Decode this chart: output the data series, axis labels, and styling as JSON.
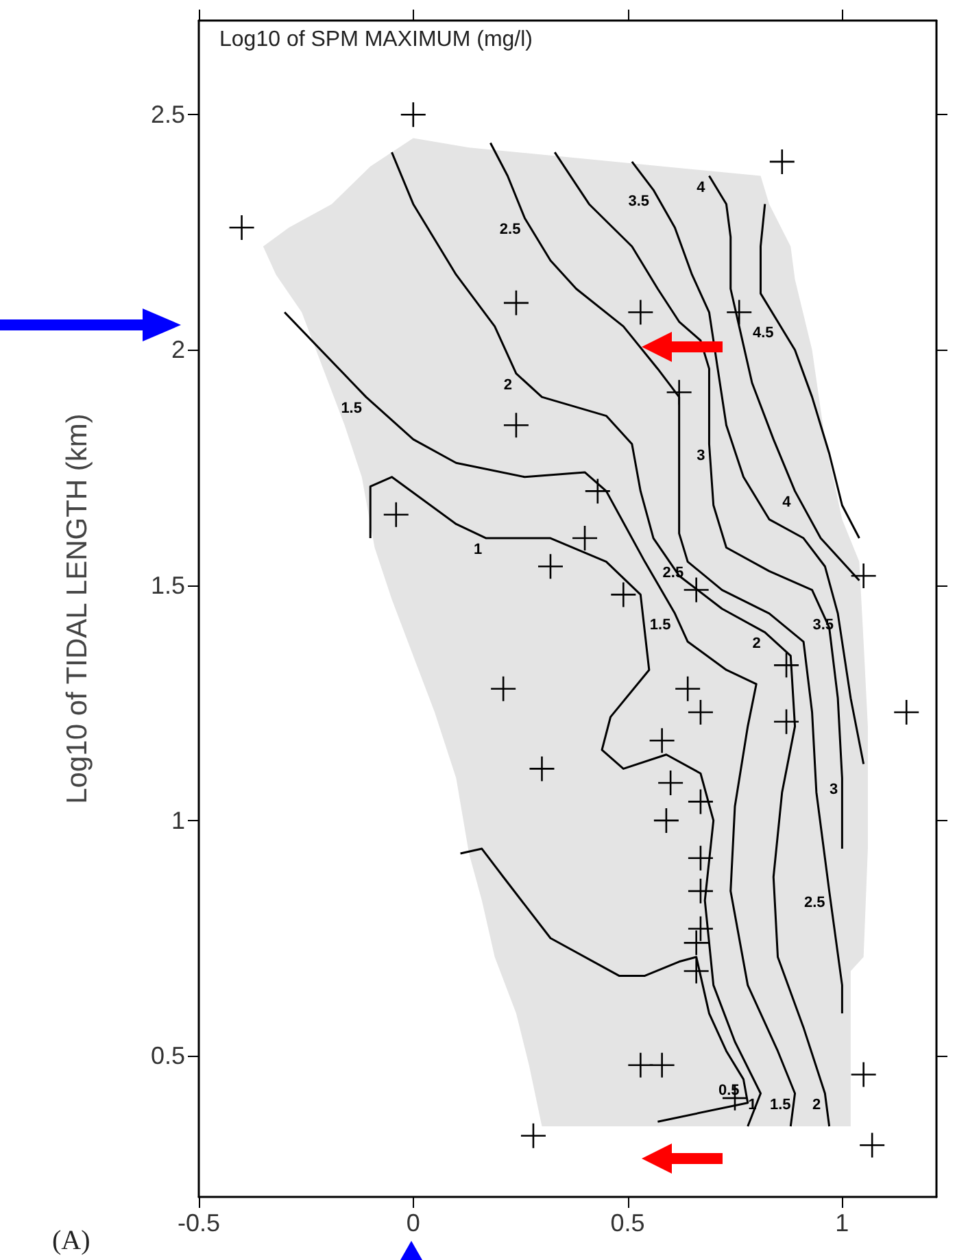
{
  "chart_data": {
    "type": "scatter",
    "title": "Log10 of SPM MAXIMUM (mg/l)",
    "ylabel": "Log10 of TIDAL LENGTH (km)",
    "xlim": [
      -0.5,
      1.22
    ],
    "ylim": [
      0.2,
      2.7
    ],
    "xticks": [
      -0.5,
      0,
      0.5,
      1
    ],
    "yticks": [
      0.5,
      1,
      1.5,
      2,
      2.5
    ],
    "grid": false,
    "series": [
      {
        "type": "area",
        "color": "#e4e4e4",
        "x": [
          0,
          0.13,
          0.81,
          0.83,
          0.88,
          0.89,
          0.93,
          0.96,
          1.0,
          1.04,
          1.05,
          1.06,
          1.06,
          1.05,
          1.02,
          1.02,
          0.3,
          0.27,
          0.24,
          0.19,
          0.16,
          0.13,
          0.1,
          0.05,
          0,
          -0.05,
          -0.09,
          -0.12,
          -0.16,
          -0.21,
          -0.26,
          -0.32,
          -0.35,
          -0.29,
          -0.19,
          -0.1
        ],
        "values": [
          2.45,
          2.43,
          2.37,
          2.31,
          2.22,
          2.15,
          2.0,
          1.81,
          1.64,
          1.55,
          1.38,
          1.2,
          0.94,
          0.71,
          0.68,
          0.35,
          0.35,
          0.48,
          0.59,
          0.71,
          0.83,
          0.93,
          1.09,
          1.23,
          1.35,
          1.47,
          1.58,
          1.73,
          1.84,
          1.96,
          2.08,
          2.16,
          2.22,
          2.26,
          2.31,
          2.39
        ]
      },
      {
        "type": "line",
        "color": "#000000",
        "marker": "none",
        "x": [
          0.11,
          0.16,
          0.21,
          0.32,
          0.48,
          0.54,
          0.62,
          0.66,
          0.69,
          0.73,
          0.77,
          0.78,
          0.57
        ],
        "values": [
          0.93,
          0.94,
          0.88,
          0.75,
          0.67,
          0.67,
          0.7,
          0.71,
          0.59,
          0.51,
          0.45,
          0.4,
          0.36
        ]
      },
      {
        "type": "line",
        "color": "#000000",
        "marker": "none",
        "x": [
          -0.1,
          -0.1,
          -0.05,
          0.1,
          0.17,
          0.32,
          0.45,
          0.53,
          0.55,
          0.46,
          0.44,
          0.49,
          0.59,
          0.67,
          0.7,
          0.68,
          0.7,
          0.75,
          0.81,
          0.78
        ],
        "values": [
          1.6,
          1.71,
          1.73,
          1.63,
          1.6,
          1.6,
          1.55,
          1.48,
          1.32,
          1.22,
          1.15,
          1.11,
          1.14,
          1.1,
          1.0,
          0.83,
          0.65,
          0.53,
          0.42,
          0.35
        ]
      },
      {
        "type": "line",
        "color": "#000000",
        "marker": "none",
        "x": [
          -0.3,
          -0.11,
          0,
          0.1,
          0.26,
          0.4,
          0.45,
          0.54,
          0.61,
          0.64,
          0.73,
          0.8,
          0.78,
          0.75,
          0.74,
          0.78,
          0.85,
          0.89,
          0.88
        ],
        "values": [
          2.08,
          1.9,
          1.81,
          1.76,
          1.73,
          1.74,
          1.7,
          1.55,
          1.44,
          1.38,
          1.32,
          1.29,
          1.2,
          1.03,
          0.85,
          0.65,
          0.51,
          0.42,
          0.35
        ]
      },
      {
        "type": "line",
        "color": "#000000",
        "marker": "none",
        "x": [
          -0.05,
          0,
          0.1,
          0.19,
          0.24,
          0.3,
          0.45,
          0.51,
          0.53,
          0.56,
          0.62,
          0.72,
          0.82,
          0.88,
          0.89,
          0.86,
          0.84,
          0.85,
          0.91,
          0.96,
          0.97
        ],
        "values": [
          2.42,
          2.31,
          2.16,
          2.05,
          1.95,
          1.9,
          1.86,
          1.8,
          1.7,
          1.6,
          1.52,
          1.45,
          1.4,
          1.35,
          1.2,
          1.06,
          0.88,
          0.71,
          0.56,
          0.42,
          0.35
        ]
      },
      {
        "type": "line",
        "color": "#000000",
        "marker": "none",
        "x": [
          0.18,
          0.22,
          0.26,
          0.32,
          0.38,
          0.49,
          0.57,
          0.62,
          0.62,
          0.64,
          0.72,
          0.83,
          0.91,
          0.93,
          0.94,
          0.97,
          1.0,
          1.0
        ],
        "values": [
          2.44,
          2.37,
          2.28,
          2.19,
          2.13,
          2.05,
          1.96,
          1.9,
          1.61,
          1.55,
          1.49,
          1.44,
          1.38,
          1.23,
          1.06,
          0.85,
          0.65,
          0.59
        ]
      },
      {
        "type": "line",
        "color": "#000000",
        "marker": "none",
        "x": [
          0.33,
          0.41,
          0.51,
          0.57,
          0.62,
          0.67,
          0.69,
          0.69,
          0.7,
          0.73,
          0.83,
          0.93,
          0.97,
          0.99,
          1.0,
          1.0
        ],
        "values": [
          2.42,
          2.31,
          2.22,
          2.13,
          2.06,
          2.02,
          1.96,
          1.8,
          1.67,
          1.58,
          1.53,
          1.49,
          1.41,
          1.26,
          1.09,
          0.94
        ]
      },
      {
        "type": "line",
        "color": "#000000",
        "marker": "none",
        "x": [
          0.51,
          0.56,
          0.61,
          0.65,
          0.69,
          0.71,
          0.73,
          0.77,
          0.83,
          0.91,
          0.96,
          0.99,
          1.02,
          1.05
        ],
        "values": [
          2.4,
          2.34,
          2.26,
          2.16,
          2.08,
          1.96,
          1.84,
          1.73,
          1.64,
          1.6,
          1.54,
          1.44,
          1.26,
          1.12
        ]
      },
      {
        "type": "line",
        "color": "#000000",
        "marker": "none",
        "x": [
          0.69,
          0.73,
          0.74,
          0.74,
          0.76,
          0.79,
          0.84,
          0.89,
          0.95,
          1.0,
          1.04
        ],
        "values": [
          2.37,
          2.31,
          2.24,
          2.13,
          2.05,
          1.93,
          1.81,
          1.7,
          1.6,
          1.55,
          1.51
        ]
      },
      {
        "type": "line",
        "color": "#000000",
        "marker": "none",
        "x": [
          0.82,
          0.81,
          0.81,
          0.85,
          0.89,
          0.93,
          0.97,
          1.0,
          1.04
        ],
        "values": [
          2.31,
          2.22,
          2.12,
          2.06,
          2.0,
          1.9,
          1.78,
          1.67,
          1.6
        ]
      },
      {
        "color": "#000000",
        "marker": "cross",
        "x": [
          0,
          -0.4,
          0.86,
          0.24,
          0.53,
          0.76,
          0.62,
          0.24,
          0.43,
          -0.04,
          0.4,
          0.32,
          0.49,
          0.66,
          1.05,
          0.21,
          0.64,
          0.67,
          0.87,
          0.87,
          1.15,
          0.3,
          0.58,
          0.6,
          0.59,
          0.67,
          0.67,
          0.67,
          0.67,
          0.66,
          0.66,
          0.53,
          0.58,
          0.75,
          1.05,
          1.07,
          0.28
        ],
        "values": [
          2.5,
          2.26,
          2.4,
          2.1,
          2.08,
          2.08,
          1.91,
          1.84,
          1.7,
          1.65,
          1.6,
          1.54,
          1.48,
          1.49,
          1.52,
          1.28,
          1.28,
          1.23,
          1.21,
          1.33,
          1.23,
          1.11,
          1.17,
          1.08,
          1.0,
          1.04,
          0.92,
          0.85,
          0.77,
          0.74,
          0.68,
          0.48,
          0.48,
          0.41,
          0.46,
          0.31,
          0.33
        ]
      }
    ],
    "annotations": [
      {
        "text": "1.5",
        "x": -0.11,
        "y": 1.9
      },
      {
        "text": "1",
        "x": 0.17,
        "y": 1.6
      },
      {
        "text": "2",
        "x": 0.24,
        "y": 1.95
      },
      {
        "text": "2.5",
        "x": 0.26,
        "y": 2.28
      },
      {
        "text": "3.5",
        "x": 0.56,
        "y": 2.34
      },
      {
        "text": "4",
        "x": 0.69,
        "y": 2.37
      },
      {
        "text": "4.5",
        "x": 0.85,
        "y": 2.06
      },
      {
        "text": "3",
        "x": 0.69,
        "y": 1.8
      },
      {
        "text": "2.5",
        "x": 0.64,
        "y": 1.55
      },
      {
        "text": "4",
        "x": 0.89,
        "y": 1.7
      },
      {
        "text": "3.5",
        "x": 0.99,
        "y": 1.44
      },
      {
        "text": "1.5",
        "x": 0.61,
        "y": 1.44
      },
      {
        "text": "2",
        "x": 0.82,
        "y": 1.4
      },
      {
        "text": "3",
        "x": 1.0,
        "y": 1.09
      },
      {
        "text": "2.5",
        "x": 0.97,
        "y": 0.85
      },
      {
        "text": "0.5",
        "x": 0.77,
        "y": 0.45
      },
      {
        "text": "1",
        "x": 0.81,
        "y": 0.42
      },
      {
        "text": "1.5",
        "x": 0.89,
        "y": 0.42
      },
      {
        "text": "2",
        "x": 0.96,
        "y": 0.42
      },
      "(A)"
    ]
  }
}
